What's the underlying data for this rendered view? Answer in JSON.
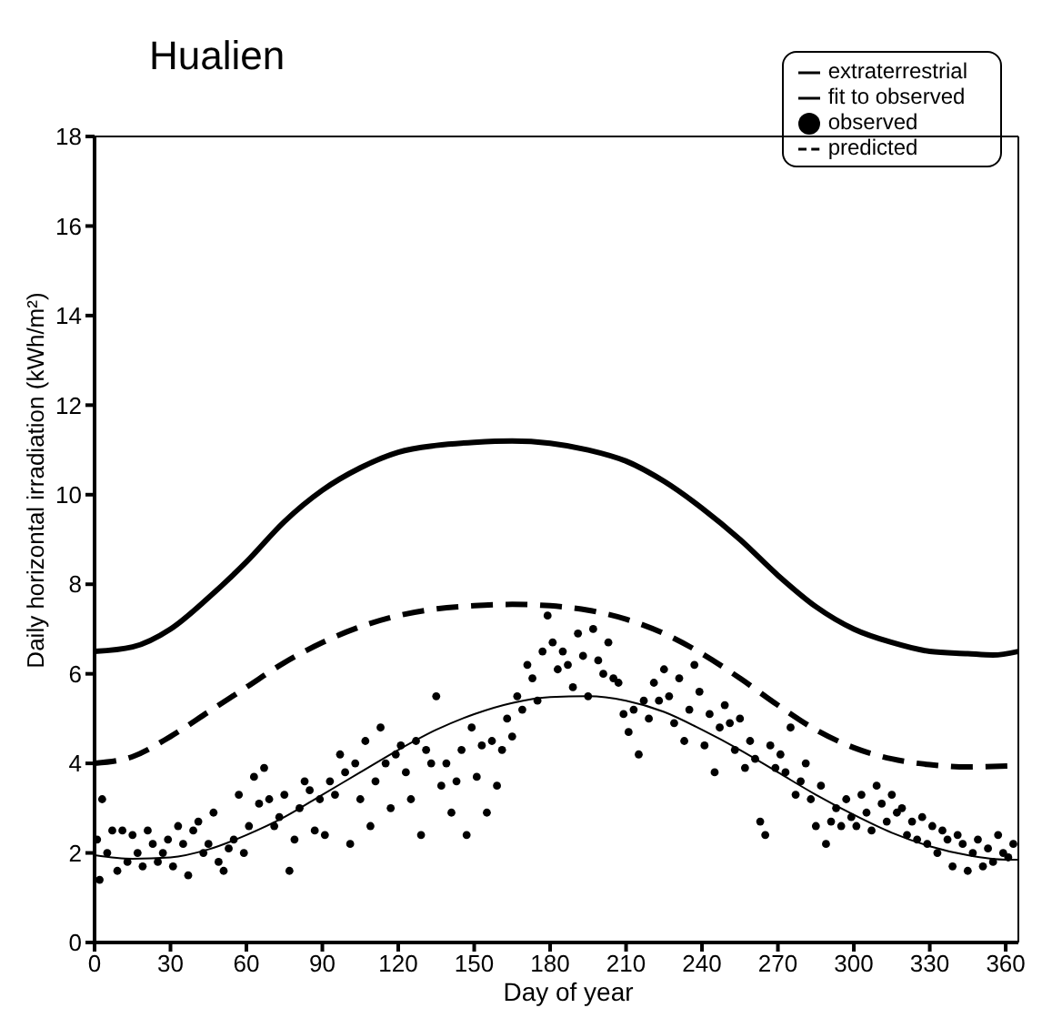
{
  "chart_data": {
    "type": "line",
    "xlabel": "Day of year",
    "ylabel": "Daily  horizontal  irradiation (kWh/m²)",
    "annotations": [
      "Hualien"
    ],
    "xlim": [
      0,
      365
    ],
    "xticks": [
      0,
      30,
      60,
      90,
      120,
      150,
      180,
      210,
      240,
      270,
      300,
      330,
      360
    ],
    "ylim": [
      0,
      18
    ],
    "yticks": [
      0,
      2,
      4,
      6,
      8,
      10,
      12,
      14,
      16,
      18
    ],
    "legend": "top right",
    "series": [
      {
        "name": "extraterrestrial",
        "color": "#000000",
        "line_style": "solid",
        "marker": "none",
        "x": [
          0,
          15,
          30,
          45,
          60,
          75,
          90,
          105,
          120,
          135,
          150,
          165,
          180,
          195,
          210,
          225,
          240,
          255,
          270,
          285,
          300,
          315,
          330,
          345,
          355,
          365
        ],
        "values": [
          6.5,
          6.6,
          7.0,
          7.7,
          8.5,
          9.4,
          10.1,
          10.6,
          10.95,
          11.1,
          11.17,
          11.2,
          11.15,
          11.0,
          10.75,
          10.3,
          9.7,
          9.0,
          8.2,
          7.5,
          7.0,
          6.7,
          6.5,
          6.45,
          6.42,
          6.5
        ]
      },
      {
        "name": "predicted",
        "color": "#000000",
        "line_style": "dashed",
        "marker": "none",
        "x": [
          0,
          15,
          30,
          45,
          60,
          75,
          90,
          105,
          120,
          135,
          150,
          165,
          180,
          195,
          210,
          225,
          240,
          255,
          270,
          285,
          300,
          315,
          330,
          345,
          365
        ],
        "values": [
          4.0,
          4.15,
          4.6,
          5.15,
          5.7,
          6.25,
          6.7,
          7.05,
          7.3,
          7.45,
          7.52,
          7.55,
          7.52,
          7.42,
          7.22,
          6.9,
          6.45,
          5.9,
          5.3,
          4.75,
          4.35,
          4.1,
          3.97,
          3.92,
          3.95
        ]
      },
      {
        "name": "observed",
        "type": "scatter",
        "color": "#000000",
        "marker": "circle",
        "x": [
          1,
          2,
          3,
          5,
          7,
          9,
          11,
          13,
          15,
          17,
          19,
          21,
          23,
          25,
          27,
          29,
          31,
          33,
          35,
          37,
          39,
          41,
          43,
          45,
          47,
          49,
          51,
          53,
          55,
          57,
          59,
          61,
          63,
          65,
          67,
          69,
          71,
          73,
          75,
          77,
          79,
          81,
          83,
          85,
          87,
          89,
          91,
          93,
          95,
          97,
          99,
          101,
          103,
          105,
          107,
          109,
          111,
          113,
          115,
          117,
          119,
          121,
          123,
          125,
          127,
          129,
          131,
          133,
          135,
          137,
          139,
          141,
          143,
          145,
          147,
          149,
          151,
          153,
          155,
          157,
          159,
          161,
          163,
          165,
          167,
          169,
          171,
          173,
          175,
          177,
          179,
          181,
          183,
          185,
          187,
          189,
          191,
          193,
          195,
          197,
          199,
          201,
          203,
          205,
          207,
          209,
          211,
          213,
          215,
          217,
          219,
          221,
          223,
          225,
          227,
          229,
          231,
          233,
          235,
          237,
          239,
          241,
          243,
          245,
          247,
          249,
          251,
          253,
          255,
          257,
          259,
          261,
          263,
          265,
          267,
          269,
          271,
          273,
          275,
          277,
          279,
          281,
          283,
          285,
          287,
          289,
          291,
          293,
          295,
          297,
          299,
          301,
          303,
          305,
          307,
          309,
          311,
          313,
          315,
          317,
          319,
          321,
          323,
          325,
          327,
          329,
          331,
          333,
          335,
          337,
          339,
          341,
          343,
          345,
          347,
          349,
          351,
          353,
          355,
          357,
          359,
          361,
          363
        ],
        "values": [
          2.3,
          1.4,
          3.2,
          2.0,
          2.5,
          1.6,
          2.5,
          1.8,
          2.4,
          2.0,
          1.7,
          2.5,
          2.2,
          1.8,
          2.0,
          2.3,
          1.7,
          2.6,
          2.2,
          1.5,
          2.5,
          2.7,
          2.0,
          2.2,
          2.9,
          1.8,
          1.6,
          2.1,
          2.3,
          3.3,
          2.0,
          2.6,
          3.7,
          3.1,
          3.9,
          3.2,
          2.6,
          2.8,
          3.3,
          1.6,
          2.3,
          3.0,
          3.6,
          3.4,
          2.5,
          3.2,
          2.4,
          3.6,
          3.3,
          4.2,
          3.8,
          2.2,
          4.0,
          3.2,
          4.5,
          2.6,
          3.6,
          4.8,
          4.0,
          3.0,
          4.2,
          4.4,
          3.8,
          3.2,
          4.5,
          2.4,
          4.3,
          4.0,
          5.5,
          3.5,
          4.0,
          2.9,
          3.6,
          4.3,
          2.4,
          4.8,
          3.7,
          4.4,
          2.9,
          4.5,
          3.5,
          4.3,
          5.0,
          4.6,
          5.5,
          5.2,
          6.2,
          5.9,
          5.4,
          6.5,
          7.3,
          6.7,
          6.1,
          6.5,
          6.2,
          5.7,
          6.9,
          6.4,
          5.5,
          7.0,
          6.3,
          6.0,
          6.7,
          5.9,
          5.8,
          5.1,
          4.7,
          5.2,
          4.2,
          5.4,
          5.0,
          5.8,
          5.4,
          6.1,
          5.5,
          4.9,
          5.9,
          4.5,
          5.2,
          6.2,
          5.6,
          4.4,
          5.1,
          3.8,
          4.8,
          5.3,
          4.9,
          4.3,
          5.0,
          3.9,
          4.5,
          4.1,
          2.7,
          2.4,
          4.4,
          3.9,
          4.2,
          3.8,
          4.8,
          3.3,
          3.6,
          4.0,
          3.2,
          2.6,
          3.5,
          2.2,
          2.7,
          3.0,
          2.6,
          3.2,
          2.8,
          2.6,
          3.3,
          2.9,
          2.5,
          3.5,
          3.1,
          2.7,
          3.3,
          2.9,
          3.0,
          2.4,
          2.7,
          2.3,
          2.8,
          2.2,
          2.6,
          2.0,
          2.5,
          2.3,
          1.7,
          2.4,
          2.2,
          1.6,
          2.0,
          2.3,
          1.7,
          2.1,
          1.8,
          2.4,
          2.0,
          1.9,
          2.2
        ]
      },
      {
        "name": "fit to observed",
        "color": "#000000",
        "line_style": "solid",
        "marker": "none",
        "x": [
          0,
          15,
          30,
          45,
          60,
          75,
          90,
          105,
          120,
          135,
          150,
          165,
          180,
          195,
          210,
          225,
          240,
          255,
          270,
          285,
          300,
          315,
          330,
          345,
          360,
          365
        ],
        "values": [
          1.95,
          1.87,
          1.9,
          2.08,
          2.4,
          2.8,
          3.3,
          3.8,
          4.3,
          4.75,
          5.1,
          5.35,
          5.48,
          5.5,
          5.4,
          5.15,
          4.75,
          4.3,
          3.8,
          3.3,
          2.85,
          2.45,
          2.15,
          1.95,
          1.85,
          1.85
        ]
      }
    ]
  }
}
